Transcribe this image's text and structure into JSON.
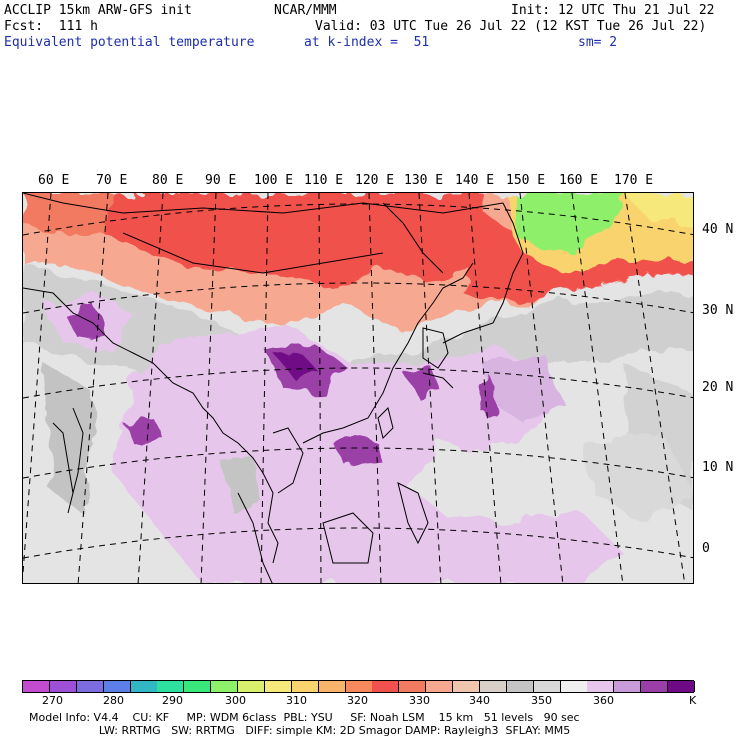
{
  "header": {
    "model_line": "ACCLIP 15km ARW-GFS init",
    "center": "NCAR/MMM",
    "init": "Init: 12 UTC Thu 21 Jul 22",
    "fcst": "Fcst:  111 h",
    "valid": "Valid: 03 UTC Tue 26 Jul 22 (12 KST Tue 26 Jul 22)",
    "field_name": "Equivalent potential temperature",
    "level": "at k-index =  51",
    "smoothing": "sm= 2"
  },
  "map": {
    "lon_labels": [
      "60 E",
      "70 E",
      "80 E",
      "90 E",
      "100 E",
      "110 E",
      "120 E",
      "130 E",
      "140 E",
      "150 E",
      "160 E",
      "170 E"
    ],
    "lat_labels": [
      "40 N",
      "30 N",
      "20 N",
      "10 N",
      "0"
    ]
  },
  "colorbar": {
    "colors": [
      "#c24bd0",
      "#9d4fd6",
      "#7d6be0",
      "#5b7fe6",
      "#32b7c4",
      "#2ee0a0",
      "#39e67a",
      "#8ef06a",
      "#d8f06c",
      "#f6e87a",
      "#f9d36d",
      "#f7b46a",
      "#f68a5c",
      "#f1514c",
      "#f27a60",
      "#f6a891",
      "#efc6ad",
      "#d8cfc6",
      "#c4c4c4",
      "#d9d9d9",
      "#efefef",
      "#e6c6ea",
      "#c79ad8",
      "#9a3fa7",
      "#6f0a86"
    ],
    "ticks": [
      "270",
      "280",
      "290",
      "300",
      "310",
      "320",
      "330",
      "340",
      "350",
      "360"
    ],
    "unit": "K"
  },
  "model_info": {
    "line1": "Model Info: V4.4    CU: KF     MP: WDM 6class  PBL: YSU     SF: Noah LSM    15 km   51 levels   90 sec",
    "line2": "                    LW: RRTMG   SW: RRTMG   DIFF: simple KM: 2D Smagor DAMP: Rayleigh3  SFLAY: MM5"
  }
}
